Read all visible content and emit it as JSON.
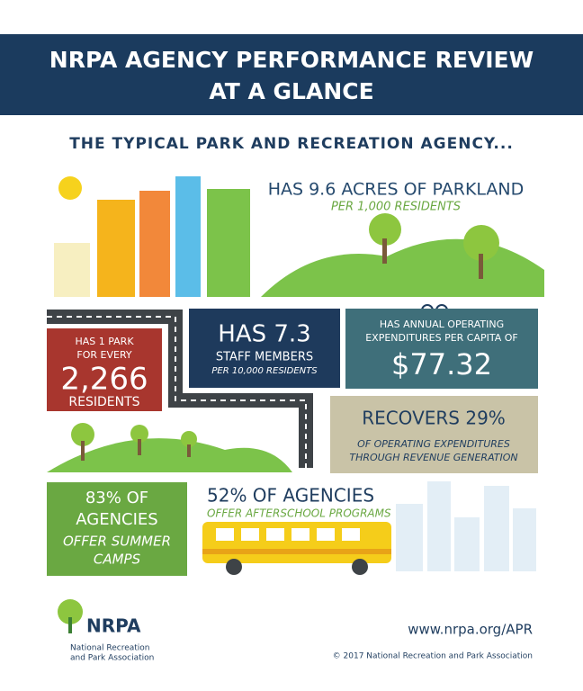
{
  "header": {
    "title_lines": [
      "NRPA AGENCY PERFORMANCE REVIEW",
      "AT A GLANCE"
    ]
  },
  "subtitle": "THE TYPICAL PARK AND RECREATION AGENCY...",
  "cards": [
    {
      "lines": [
        "HAS 9.6 ACRES OF PARKLAND",
        "PER 1,000 RESIDENTS"
      ]
    },
    {
      "lines": [
        "HAS 1 PARK",
        "FOR EVERY",
        "2,266",
        "RESIDENTS"
      ]
    },
    {
      "lines": [
        "HAS 7.3",
        "STAFF MEMBERS",
        "PER 10,000 RESIDENTS"
      ]
    },
    {
      "lines": [
        "HAS ANNUAL OPERATING",
        "EXPENDITURES PER CAPITA OF",
        "$77.32"
      ]
    },
    {
      "lines": [
        "RECOVERS 29%",
        "OF OPERATING EXPENDITURES",
        "THROUGH REVENUE GENERATION"
      ]
    },
    {
      "lines": [
        "83% OF",
        "AGENCIES",
        "OFFER SUMMER",
        "CAMPS"
      ]
    },
    {
      "lines": [
        "52% OF AGENCIES",
        "OFFER AFTERSCHOOL PROGRAMS"
      ]
    }
  ],
  "footer": {
    "logo": "NRPA",
    "logo_lines": [
      "National Recreation",
      "and Park Association"
    ],
    "url": "www.nrpa.org/APR",
    "copyright": "© 2017 National Recreation and Park Association"
  }
}
